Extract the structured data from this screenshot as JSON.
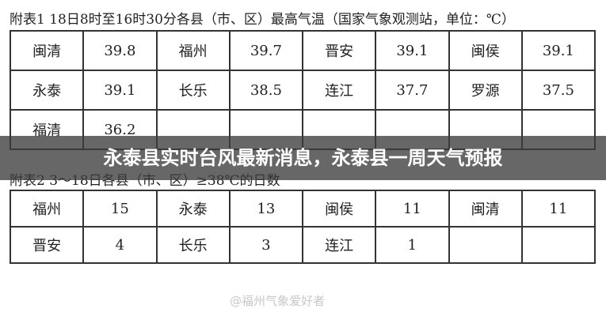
{
  "table1": {
    "title": "附表1 18日8时至16时30分各县（市、区）最高气温（国家气象观测站，单位：℃）",
    "rows": [
      [
        "闽清",
        "39.8",
        "福州",
        "39.7",
        "晋安",
        "39.1",
        "闽侯",
        "39.1"
      ],
      [
        "永泰",
        "39.1",
        "长乐",
        "38.5",
        "连江",
        "37.7",
        "罗源",
        "37.5"
      ],
      [
        "福清",
        "36.2"
      ]
    ]
  },
  "banner": {
    "title": "永泰县实时台风最新消息，永泰县一周天气预报"
  },
  "table2": {
    "title": "附表2 3～18日各县（市、区）≥38℃的日数",
    "rows": [
      [
        "福州",
        "15",
        "永泰",
        "13",
        "闽侯",
        "11",
        "闽清",
        "11"
      ],
      [
        "晋安",
        "4",
        "长乐",
        "3",
        "连江",
        "1"
      ]
    ]
  },
  "watermark": {
    "text": "@福州气象爱好者"
  }
}
